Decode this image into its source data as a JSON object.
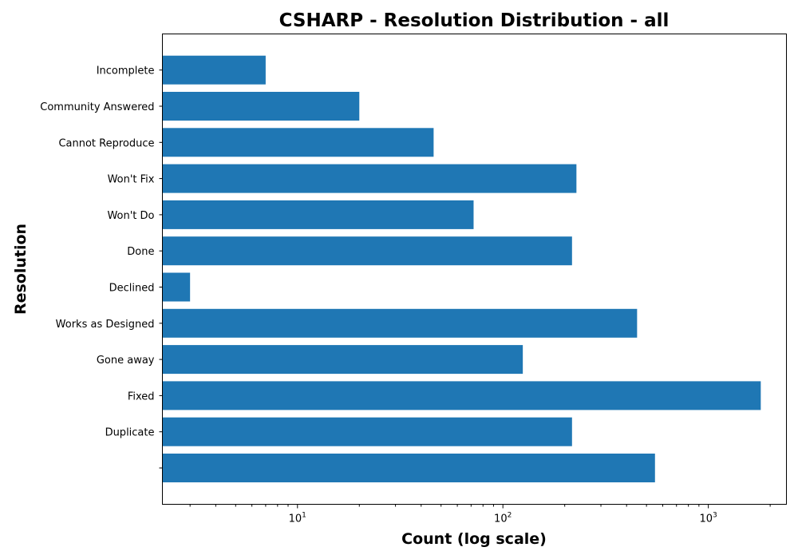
{
  "chart_data": {
    "type": "bar",
    "orientation": "horizontal",
    "title": "CSHARP - Resolution Distribution - all",
    "xlabel": "Count (log scale)",
    "ylabel": "Resolution",
    "x_scale": "log",
    "xlim": [
      2.2,
      2400
    ],
    "x_ticks": [
      {
        "value": 10,
        "base": "10",
        "exp": "1"
      },
      {
        "value": 100,
        "base": "10",
        "exp": "2"
      },
      {
        "value": 1000,
        "base": "10",
        "exp": "3"
      }
    ],
    "grid": false,
    "bar_color": "#1f77b4",
    "categories": [
      "",
      "Duplicate",
      "Fixed",
      "Gone away",
      "Works as Designed",
      "Declined",
      "Done",
      "Won't Do",
      "Won't Fix",
      "Cannot Reproduce",
      "Community Answered",
      "Incomplete"
    ],
    "values": [
      550,
      217,
      1800,
      125,
      450,
      3,
      217,
      72,
      228,
      46,
      20,
      7
    ]
  }
}
